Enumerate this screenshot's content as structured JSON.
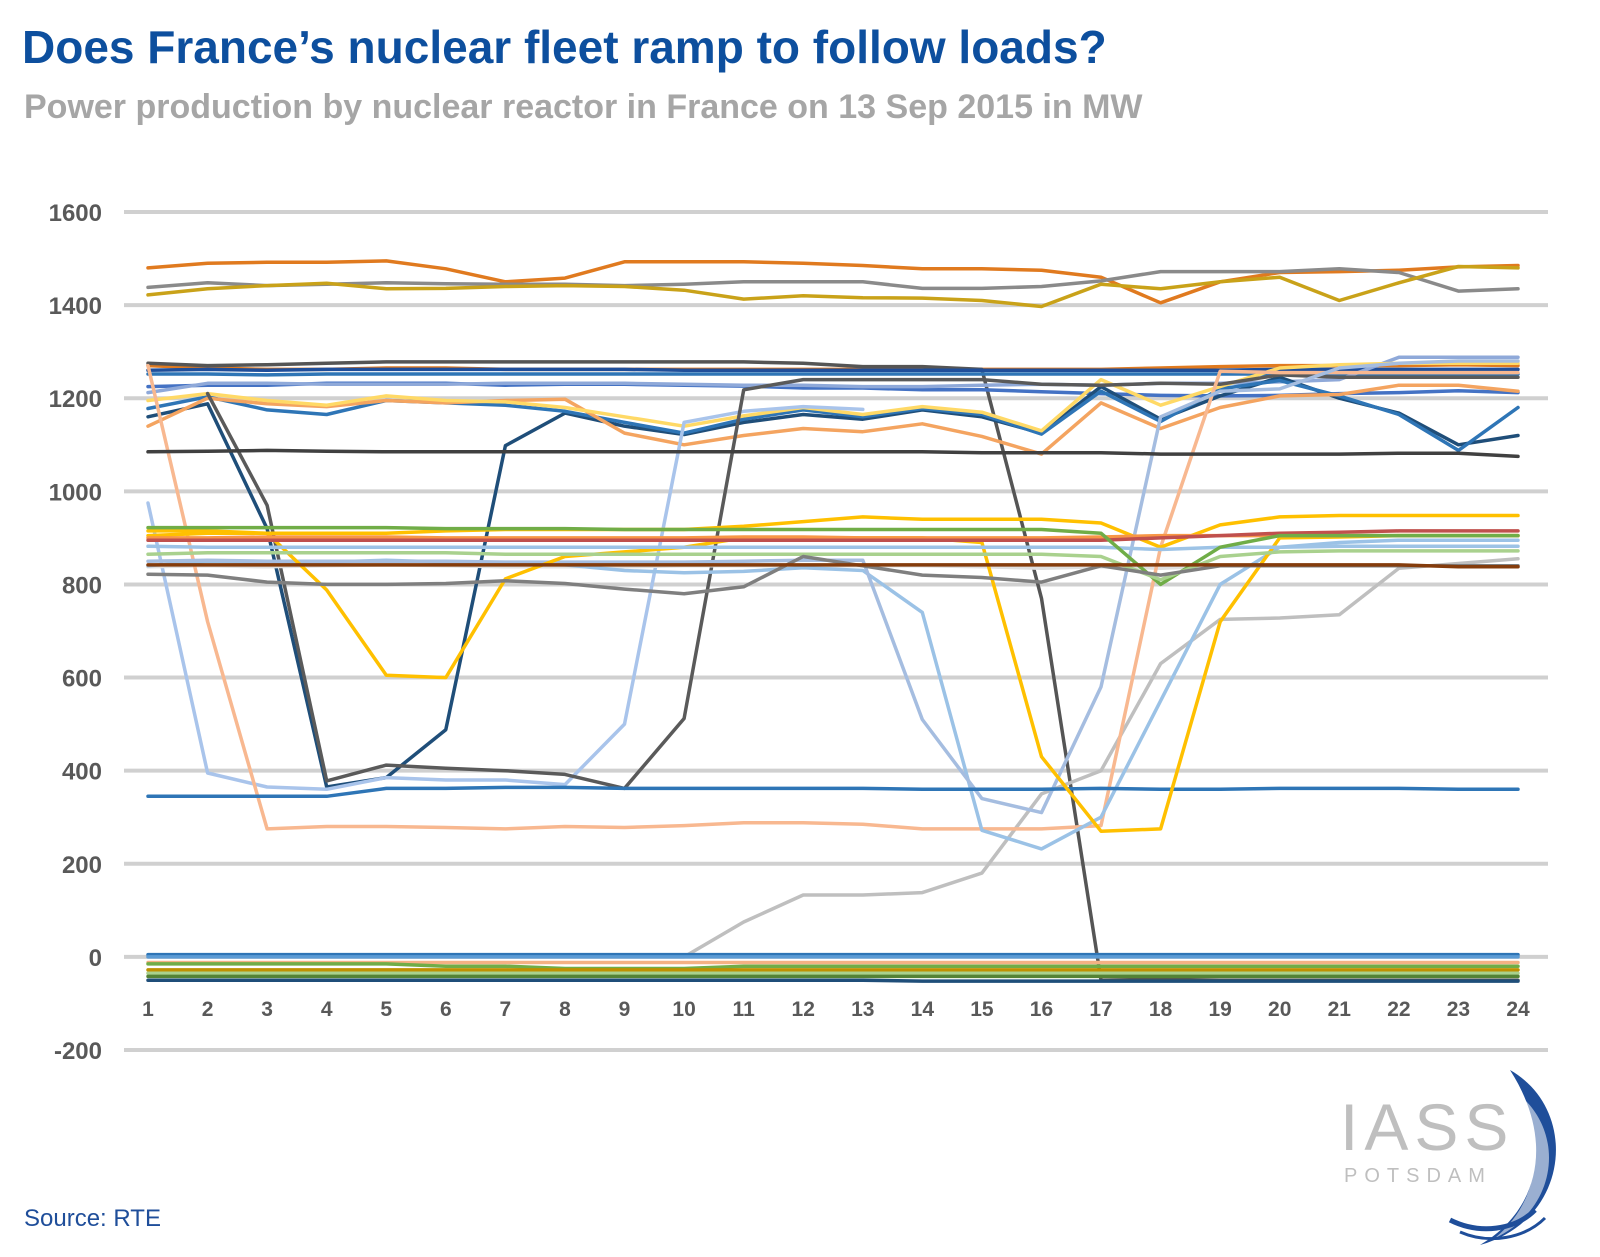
{
  "header": {
    "title": "Does France’s nuclear fleet ramp to follow loads?",
    "subtitle": "Power production by nuclear reactor in France on 13 Sep 2015 in MW"
  },
  "footer": {
    "source": "Source: RTE"
  },
  "logo": {
    "text": "IASS",
    "subtext": "POTSDAM",
    "color": "#1f4e9a"
  },
  "chart_data": {
    "type": "line",
    "title": "Does France’s nuclear fleet ramp to follow loads?",
    "subtitle": "Power production by nuclear reactor in France on 13 Sep 2015 in MW",
    "x": [
      1,
      2,
      3,
      4,
      5,
      6,
      7,
      8,
      9,
      10,
      11,
      12,
      13,
      14,
      15,
      16,
      17,
      18,
      19,
      20,
      21,
      22,
      23,
      24
    ],
    "ylim": [
      -200,
      1600
    ],
    "yticks": [
      -200,
      0,
      200,
      400,
      600,
      800,
      1000,
      1200,
      1400,
      1600
    ],
    "grid": true,
    "legend": "none",
    "series": [
      {
        "color": "#e07a1f",
        "values": [
          1480,
          1490,
          1492,
          1492,
          1495,
          1478,
          1450,
          1458,
          1493,
          1493,
          1493,
          1490,
          1485,
          1478,
          1478,
          1475,
          1460,
          1405,
          1450,
          1470,
          1472,
          1475,
          1482,
          1485
        ]
      },
      {
        "color": "#8a8a8a",
        "values": [
          1438,
          1448,
          1442,
          1445,
          1448,
          1446,
          1445,
          1445,
          1442,
          1445,
          1450,
          1450,
          1450,
          1436,
          1436,
          1440,
          1452,
          1472,
          1472,
          1472,
          1478,
          1470,
          1430,
          1435
        ]
      },
      {
        "color": "#c9a219",
        "values": [
          1422,
          1435,
          1442,
          1447,
          1435,
          1436,
          1440,
          1442,
          1440,
          1432,
          1413,
          1420,
          1416,
          1415,
          1410,
          1397,
          1445,
          1435,
          1450,
          1460,
          1410,
          1448,
          1483,
          1480
        ]
      },
      {
        "color": "#e07a1f",
        "values": [
          1270,
          1265,
          1262,
          1262,
          1265,
          1265,
          1262,
          1262,
          1262,
          1262,
          1262,
          1262,
          1262,
          1262,
          1262,
          1262,
          1262,
          1265,
          1268,
          1270,
          1270,
          1270,
          1272,
          1270
        ]
      },
      {
        "color": "#555555",
        "values": [
          1275,
          1270,
          1272,
          1275,
          1278,
          1278,
          1278,
          1278,
          1278,
          1278,
          1278,
          1275,
          1268,
          1268,
          1262,
          770,
          -50,
          -48,
          -50,
          -50,
          -50,
          -50,
          -50,
          -50
        ]
      },
      {
        "color": "#1f4e9a",
        "values": [
          1260,
          1262,
          1260,
          1262,
          1262,
          1262,
          1262,
          1262,
          1262,
          1260,
          1260,
          1260,
          1260,
          1260,
          1260,
          1260,
          1260,
          1260,
          1260,
          1262,
          1262,
          1262,
          1262,
          1262
        ]
      },
      {
        "color": "#2e75b6",
        "values": [
          1252,
          1252,
          1250,
          1252,
          1252,
          1252,
          1252,
          1252,
          1252,
          1252,
          1252,
          1252,
          1252,
          1252,
          1252,
          1252,
          1252,
          1252,
          1252,
          1252,
          1252,
          1252,
          1252,
          1252
        ]
      },
      {
        "color": "#4472c4",
        "values": [
          1225,
          1228,
          1228,
          1232,
          1232,
          1232,
          1228,
          1230,
          1230,
          1228,
          1226,
          1222,
          1222,
          1218,
          1218,
          1214,
          1210,
          1206,
          1205,
          1206,
          1210,
          1212,
          1216,
          1212
        ]
      },
      {
        "color": "#8fa9d9",
        "values": [
          1212,
          1232,
          1232,
          1230,
          1230,
          1230,
          1232,
          1232,
          1232,
          1230,
          1228,
          1228,
          1225,
          1225,
          1228,
          1230,
          1228,
          1232,
          1232,
          1235,
          1240,
          1288,
          1288,
          1288
        ]
      },
      {
        "color": "#1f4e79",
        "values": [
          1160,
          1188,
          920,
          365,
          385,
          488,
          1098,
          1168,
          1140,
          1122,
          1148,
          1165,
          1155,
          1175,
          1160,
          1125,
          1225,
          1155,
          1205,
          1245,
          1200,
          1168,
          1100,
          1120
        ]
      },
      {
        "color": "#2e75b6",
        "values": [
          1178,
          1203,
          1175,
          1165,
          1195,
          1190,
          1185,
          1172,
          1148,
          1125,
          1155,
          1175,
          1160,
          1178,
          1165,
          1123,
          1215,
          1150,
          1220,
          1238,
          1205,
          1165,
          1088,
          1180
        ]
      },
      {
        "color": "#f4a460",
        "values": [
          1140,
          1200,
          1188,
          1182,
          1195,
          1190,
          1195,
          1198,
          1125,
          1100,
          1120,
          1135,
          1128,
          1145,
          1118,
          1080,
          1190,
          1135,
          1180,
          1205,
          1208,
          1228,
          1228,
          1215
        ]
      },
      {
        "color": "#ffd966",
        "values": [
          1195,
          1210,
          1195,
          1185,
          1205,
          1195,
          1192,
          1180,
          1160,
          1140,
          1162,
          1180,
          1165,
          1182,
          1170,
          1130,
          1240,
          1185,
          1225,
          1265,
          1272,
          1275,
          1275,
          1275
        ]
      },
      {
        "color": "#a9c4eb",
        "values": [
          975,
          395,
          365,
          360,
          385,
          380,
          380,
          370,
          500,
          1148,
          1172,
          1182,
          1176,
          null,
          null,
          null,
          null,
          null,
          null,
          null,
          null,
          null,
          null,
          null
        ]
      },
      {
        "color": "#5a5a5a",
        "values": [
          null,
          1210,
          970,
          378,
          412,
          405,
          400,
          392,
          362,
          512,
          1218,
          1240,
          1240,
          1240,
          1240,
          1230,
          1228,
          1232,
          1230,
          1250,
          1245,
          1245,
          1245,
          1245
        ]
      },
      {
        "color": "#bfbfbf",
        "values": [
          0,
          0,
          0,
          0,
          0,
          0,
          0,
          0,
          0,
          0,
          75,
          133,
          133,
          138,
          180,
          350,
          400,
          630,
          725,
          728,
          735,
          835,
          845,
          855
        ]
      },
      {
        "color": "#e0e0e0",
        "values": [
          838,
          840,
          838,
          840,
          842,
          840,
          838,
          838,
          838,
          840,
          840,
          840,
          840,
          840,
          838,
          835,
          838,
          835,
          840,
          842,
          842,
          840,
          840,
          840
        ]
      },
      {
        "color": "#f8b890",
        "values": [
          1270,
          720,
          275,
          280,
          280,
          278,
          275,
          280,
          278,
          282,
          288,
          288,
          285,
          275,
          275,
          275,
          282,
          880,
          1258,
          1255,
          1255,
          1255,
          1255,
          1255
        ]
      },
      {
        "color": "#9bc2e6",
        "values": [
          840,
          850,
          848,
          848,
          852,
          848,
          845,
          842,
          830,
          825,
          828,
          836,
          830,
          740,
          272,
          232,
          300,
          550,
          800,
          880,
          890,
          895,
          895,
          895
        ]
      },
      {
        "color": "#a5bde0",
        "values": [
          850,
          852,
          850,
          850,
          850,
          850,
          848,
          848,
          848,
          848,
          850,
          852,
          852,
          510,
          340,
          310,
          580,
          1160,
          1215,
          1220,
          1265,
          1275,
          1280,
          1280
        ]
      },
      {
        "color": "#2e75b6",
        "values": [
          345,
          345,
          345,
          345,
          362,
          362,
          364,
          364,
          362,
          362,
          362,
          362,
          362,
          360,
          360,
          360,
          362,
          360,
          360,
          362,
          362,
          362,
          360,
          360
        ]
      },
      {
        "color": "#ffc000",
        "values": [
          915,
          915,
          910,
          788,
          605,
          600,
          812,
          860,
          870,
          880,
          900,
          900,
          900,
          900,
          890,
          430,
          270,
          275,
          720,
          900,
          902,
          905,
          905,
          905
        ]
      },
      {
        "color": "#ffc000",
        "values": [
          905,
          910,
          910,
          910,
          910,
          915,
          918,
          918,
          918,
          918,
          925,
          935,
          945,
          940,
          940,
          940,
          932,
          880,
          928,
          945,
          948,
          948,
          948,
          948
        ]
      },
      {
        "color": "#f79646",
        "values": [
          900,
          900,
          902,
          902,
          902,
          900,
          900,
          900,
          900,
          900,
          902,
          902,
          900,
          900,
          900,
          900,
          902,
          905,
          905,
          905,
          905,
          905,
          905,
          905
        ]
      },
      {
        "color": "#c0504d",
        "values": [
          895,
          895,
          895,
          895,
          895,
          895,
          895,
          895,
          895,
          895,
          895,
          895,
          895,
          895,
          895,
          895,
          895,
          900,
          905,
          910,
          912,
          915,
          915,
          915
        ]
      },
      {
        "color": "#9dc3e6",
        "values": [
          882,
          880,
          880,
          880,
          880,
          880,
          880,
          880,
          880,
          880,
          880,
          880,
          880,
          880,
          880,
          880,
          880,
          875,
          880,
          880,
          882,
          882,
          882,
          882
        ]
      },
      {
        "color": "#70ad47",
        "values": [
          922,
          922,
          922,
          922,
          922,
          920,
          920,
          920,
          918,
          918,
          918,
          918,
          918,
          918,
          918,
          918,
          910,
          800,
          880,
          905,
          905,
          905,
          905,
          905
        ]
      },
      {
        "color": "#a9d18e",
        "values": [
          865,
          868,
          868,
          868,
          868,
          868,
          865,
          865,
          865,
          865,
          865,
          865,
          865,
          865,
          865,
          865,
          860,
          810,
          860,
          870,
          872,
          872,
          872,
          872
        ]
      },
      {
        "color": "#7f7f7f",
        "values": [
          822,
          820,
          805,
          800,
          800,
          802,
          808,
          802,
          790,
          780,
          795,
          860,
          840,
          820,
          815,
          805,
          840,
          820,
          840,
          840,
          840,
          840,
          840,
          840
        ]
      },
      {
        "color": "#843c0c",
        "values": [
          842,
          842,
          842,
          842,
          842,
          842,
          842,
          842,
          842,
          842,
          842,
          842,
          842,
          842,
          842,
          842,
          842,
          842,
          842,
          842,
          842,
          842,
          838,
          838
        ]
      },
      {
        "color": "#404040",
        "values": [
          1085,
          1086,
          1088,
          1086,
          1085,
          1085,
          1085,
          1085,
          1085,
          1085,
          1085,
          1085,
          1085,
          1085,
          1083,
          1083,
          1083,
          1080,
          1080,
          1080,
          1080,
          1082,
          1082,
          1075
        ]
      },
      {
        "color": "#2e75b6",
        "values": [
          5,
          5,
          5,
          5,
          5,
          5,
          5,
          5,
          5,
          5,
          5,
          5,
          5,
          5,
          5,
          5,
          5,
          5,
          5,
          5,
          5,
          5,
          5,
          5
        ]
      },
      {
        "color": "#5b9bd5",
        "values": [
          0,
          0,
          0,
          0,
          0,
          0,
          0,
          0,
          0,
          0,
          0,
          0,
          0,
          0,
          0,
          0,
          0,
          0,
          0,
          0,
          0,
          0,
          0,
          0
        ]
      },
      {
        "color": "#f4b183",
        "values": [
          -12,
          -12,
          -12,
          -12,
          -12,
          -12,
          -12,
          -12,
          -12,
          -12,
          -12,
          -12,
          -12,
          -12,
          -12,
          -12,
          -12,
          -12,
          -12,
          -12,
          -12,
          -12,
          -12,
          -12
        ]
      },
      {
        "color": "#70ad47",
        "values": [
          -15,
          -15,
          -15,
          -15,
          -15,
          -20,
          -20,
          -25,
          -25,
          -25,
          -20,
          -20,
          -20,
          -20,
          -20,
          -20,
          -20,
          -20,
          -20,
          -20,
          -20,
          -20,
          -20,
          -20
        ]
      },
      {
        "color": "#bf9000",
        "values": [
          -28,
          -28,
          -28,
          -28,
          -28,
          -28,
          -28,
          -28,
          -28,
          -28,
          -28,
          -28,
          -28,
          -28,
          -28,
          -28,
          -28,
          -28,
          -28,
          -28,
          -28,
          -28,
          -28,
          -28
        ]
      },
      {
        "color": "#a9d18e",
        "values": [
          -35,
          -35,
          -35,
          -35,
          -35,
          -35,
          -35,
          -35,
          -35,
          -35,
          -35,
          -35,
          -35,
          -35,
          -35,
          -35,
          -35,
          -35,
          -35,
          -35,
          -35,
          -35,
          -35,
          -35
        ]
      },
      {
        "color": "#548235",
        "values": [
          -42,
          -42,
          -42,
          -42,
          -42,
          -42,
          -42,
          -42,
          -42,
          -42,
          -42,
          -42,
          -42,
          -42,
          -42,
          -42,
          -42,
          -42,
          -42,
          -42,
          -42,
          -42,
          -42,
          -42
        ]
      },
      {
        "color": "#1f4e79",
        "values": [
          -50,
          -50,
          -50,
          -50,
          -50,
          -50,
          -50,
          -50,
          -50,
          -50,
          -50,
          -50,
          -50,
          -52,
          -52,
          -52,
          -52,
          -52,
          -52,
          -52,
          -52,
          -52,
          -52,
          -52
        ]
      }
    ]
  }
}
